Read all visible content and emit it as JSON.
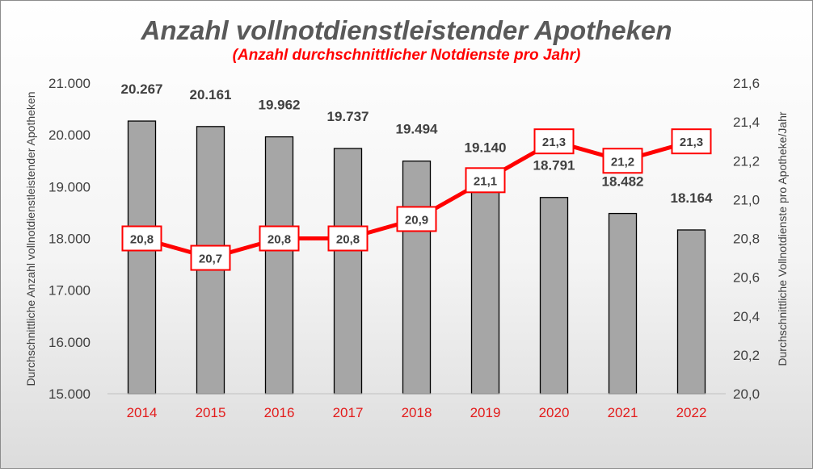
{
  "chart_data": {
    "type": "bar",
    "title": "Anzahl vollnotdienstleistender Apotheken",
    "subtitle": "(Anzahl durchschnittlicher Notdienste pro Jahr)",
    "categories": [
      "2014",
      "2015",
      "2016",
      "2017",
      "2018",
      "2019",
      "2020",
      "2021",
      "2022"
    ],
    "bars": {
      "values": [
        20267,
        20161,
        19962,
        19737,
        19494,
        19140,
        18791,
        18482,
        18164
      ],
      "labels": [
        "20.267",
        "20.161",
        "19.962",
        "19.737",
        "19.494",
        "19.140",
        "18.791",
        "18.482",
        "18.164"
      ],
      "color": "#a6a6a6",
      "axis": "left"
    },
    "line": {
      "values": [
        20.8,
        20.7,
        20.8,
        20.8,
        20.9,
        21.1,
        21.3,
        21.2,
        21.3
      ],
      "labels": [
        "20,8",
        "20,7",
        "20,8",
        "20,8",
        "20,9",
        "21,1",
        "21,3",
        "21,2",
        "21,3"
      ],
      "color": "#ff0000",
      "axis": "right"
    },
    "y_left": {
      "label": "Durchschnittliche Anzahl vollnotdienstleistender Apotheken",
      "ylim": [
        15000,
        21000
      ],
      "ticks": [
        15000,
        16000,
        17000,
        18000,
        19000,
        20000,
        21000
      ],
      "tick_labels": [
        "15.000",
        "16.000",
        "17.000",
        "18.000",
        "19.000",
        "20.000",
        "21.000"
      ]
    },
    "y_right": {
      "label": "Durchschnittliche Vollnotdienste pro Apotheke/Jahr",
      "ylim": [
        20.0,
        21.6
      ],
      "ticks": [
        20.0,
        20.2,
        20.4,
        20.6,
        20.8,
        21.0,
        21.2,
        21.4,
        21.6
      ],
      "tick_labels": [
        "20,0",
        "20,2",
        "20,4",
        "20,6",
        "20,8",
        "21,0",
        "21,2",
        "21,4",
        "21,6"
      ]
    },
    "grid": false,
    "legend": "none"
  }
}
